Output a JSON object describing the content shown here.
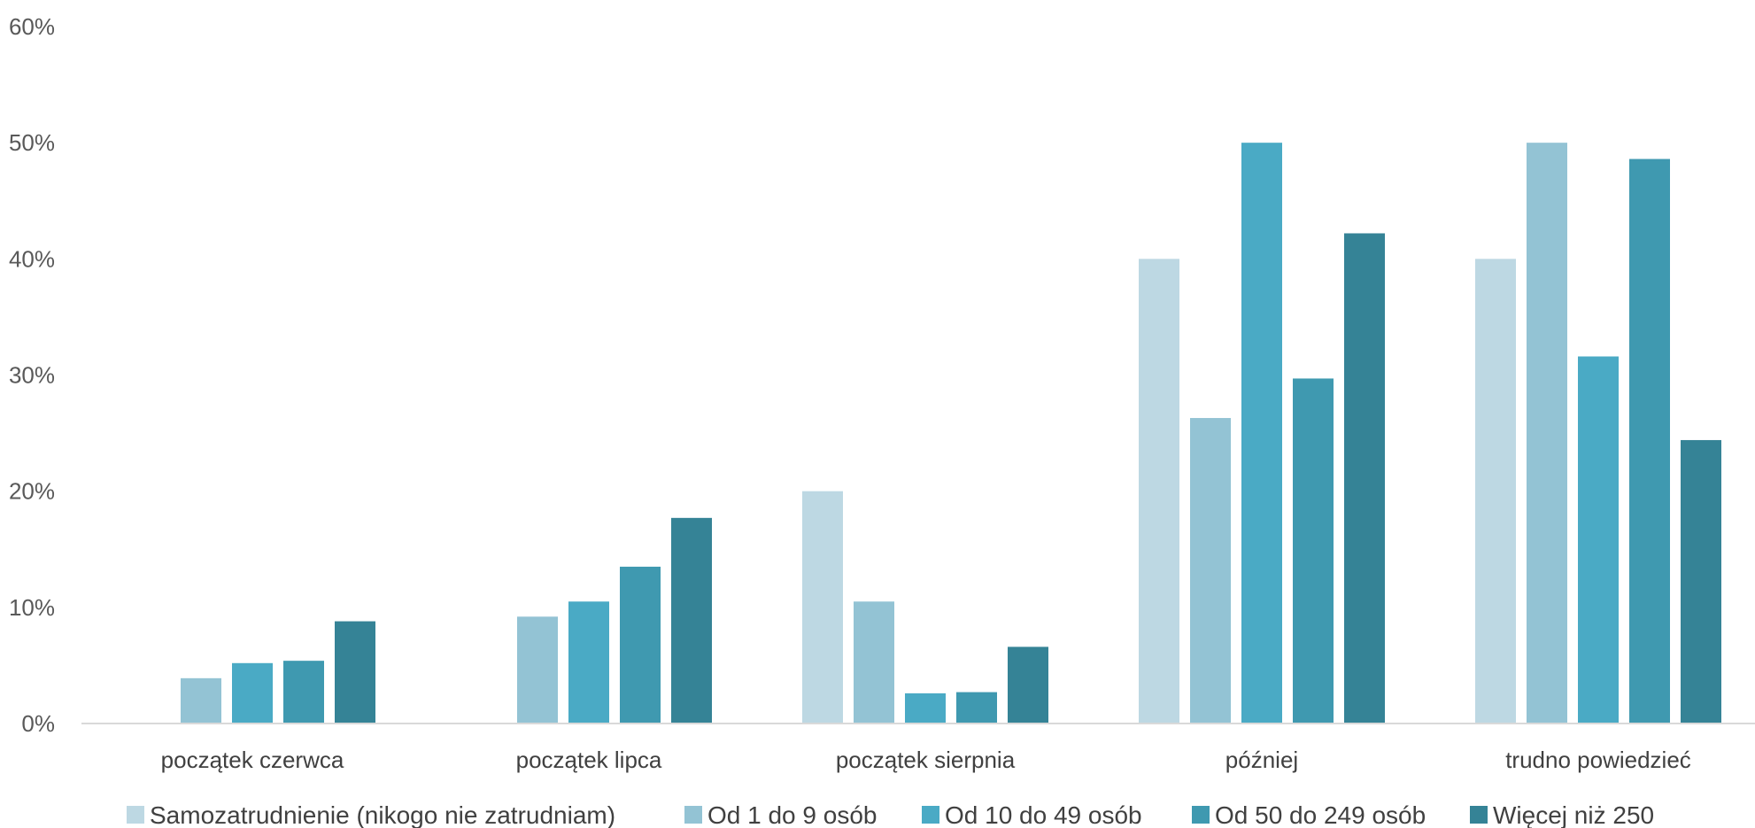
{
  "chart_data": {
    "type": "bar",
    "title": "",
    "xlabel": "",
    "ylabel": "",
    "ylim": [
      0,
      0.6
    ],
    "yticks": [
      0,
      0.1,
      0.2,
      0.3,
      0.4,
      0.5,
      0.6
    ],
    "ytick_labels": [
      "0%",
      "10%",
      "20%",
      "30%",
      "40%",
      "50%",
      "60%"
    ],
    "grid": false,
    "legend_position": "bottom",
    "categories": [
      "początek czerwca",
      "początek lipca",
      "początek sierpnia",
      "później",
      "trudno powiedzieć"
    ],
    "series": [
      {
        "name": "Samozatrudnienie (nikogo nie zatrudniam)",
        "color": "#bdd8e3",
        "values": [
          0.0,
          0.0,
          0.2,
          0.4,
          0.4
        ]
      },
      {
        "name": "Od 1 do 9 osób",
        "color": "#93c3d4",
        "values": [
          0.039,
          0.092,
          0.105,
          0.263,
          0.5
        ]
      },
      {
        "name": "Od 10 do 49 osób",
        "color": "#4aaac5",
        "values": [
          0.052,
          0.105,
          0.026,
          0.5,
          0.316
        ]
      },
      {
        "name": "Od 50 do 249 osób",
        "color": "#3f99b0",
        "values": [
          0.054,
          0.135,
          0.027,
          0.297,
          0.486
        ]
      },
      {
        "name": "Więcej niż  250",
        "color": "#358396",
        "values": [
          0.088,
          0.177,
          0.066,
          0.422,
          0.244
        ]
      }
    ]
  }
}
